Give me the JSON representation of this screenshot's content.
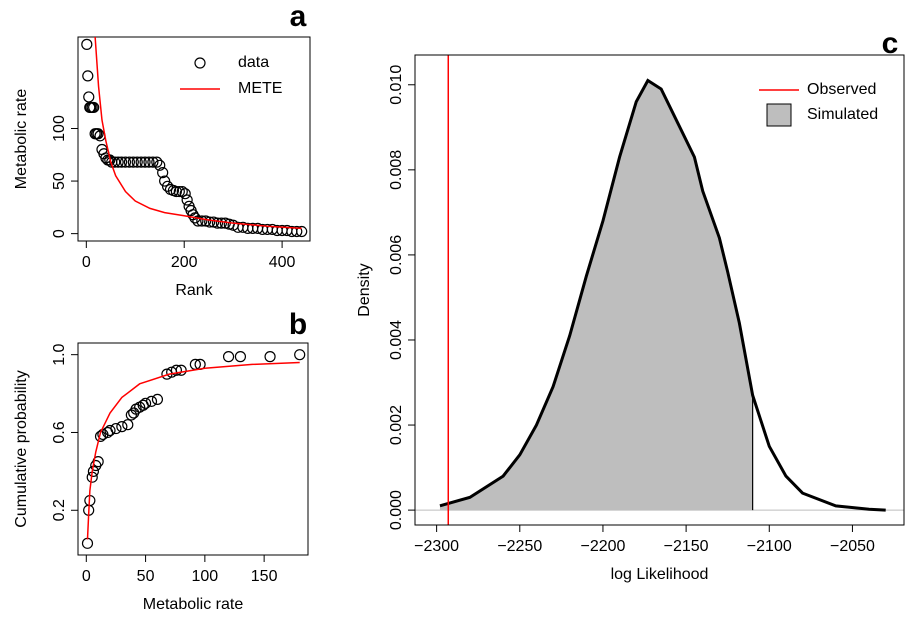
{
  "chart_data": [
    {
      "type": "scatter",
      "panel_label": "a",
      "x_label": "Rank",
      "y_label": "Metabolic rate",
      "xlim": [
        -17,
        457
      ],
      "ylim": [
        -7,
        187
      ],
      "xticks": [
        0,
        200,
        400
      ],
      "yticks": [
        0,
        50,
        100
      ],
      "legend": "topright",
      "series": [
        {
          "name": "data",
          "style": "points",
          "color": "#000000",
          "x": [
            1,
            3,
            5,
            7,
            9,
            12,
            15,
            18,
            21,
            24,
            28,
            32,
            36,
            40,
            44,
            48,
            52,
            58,
            65,
            72,
            80,
            88,
            96,
            104,
            112,
            120,
            128,
            136,
            144,
            150,
            156,
            160,
            166,
            172,
            178,
            184,
            190,
            196,
            202,
            206,
            210,
            214,
            218,
            222,
            228,
            236,
            244,
            252,
            260,
            268,
            276,
            284,
            292,
            300,
            310,
            320,
            330,
            340,
            350,
            360,
            370,
            380,
            390,
            400,
            410,
            420,
            430,
            440
          ],
          "values": [
            180,
            150,
            130,
            120,
            120,
            120,
            120,
            95,
            95,
            95,
            93,
            80,
            76,
            72,
            70,
            70,
            68,
            68,
            68,
            68,
            68,
            68,
            68,
            68,
            68,
            68,
            68,
            68,
            68,
            65,
            58,
            50,
            45,
            42,
            41,
            40,
            40,
            40,
            38,
            32,
            26,
            22,
            18,
            15,
            12,
            12,
            12,
            11,
            11,
            10,
            10,
            10,
            9,
            8,
            6,
            6,
            5,
            5,
            5,
            4,
            4,
            4,
            3,
            3,
            3,
            2,
            2,
            2
          ]
        },
        {
          "name": "METE",
          "style": "line",
          "color": "#ff0000",
          "x": [
            18,
            25,
            32,
            40,
            50,
            60,
            80,
            100,
            130,
            160,
            200,
            250,
            300,
            370,
            440
          ],
          "values": [
            187,
            140,
            108,
            88,
            68,
            55,
            40,
            31,
            24,
            20,
            17,
            13,
            10,
            7,
            5
          ]
        }
      ]
    },
    {
      "type": "scatter",
      "panel_label": "b",
      "x_label": "Metabolic rate",
      "y_label": "Cumulative probability",
      "xlim": [
        -7,
        187
      ],
      "ylim": [
        -0.03,
        1.06
      ],
      "xticks": [
        0,
        50,
        100,
        150
      ],
      "yticks": [
        0.2,
        0.6,
        {
          "value": 1.0,
          "label": "1.0"
        }
      ],
      "series": [
        {
          "name": "data",
          "style": "points",
          "color": "#000000",
          "x": [
            1,
            2,
            3,
            5,
            6,
            8,
            10,
            12,
            14,
            18,
            20,
            25,
            30,
            35,
            38,
            40,
            42,
            45,
            48,
            50,
            55,
            60,
            68,
            72,
            76,
            80,
            92,
            96,
            120,
            130,
            155,
            180
          ],
          "values": [
            0.03,
            0.2,
            0.25,
            0.37,
            0.4,
            0.43,
            0.45,
            0.58,
            0.59,
            0.6,
            0.61,
            0.62,
            0.63,
            0.64,
            0.69,
            0.7,
            0.72,
            0.73,
            0.74,
            0.75,
            0.76,
            0.77,
            0.9,
            0.91,
            0.92,
            0.92,
            0.95,
            0.95,
            0.99,
            0.99,
            0.99,
            1.0
          ]
        },
        {
          "name": "METE",
          "style": "line",
          "color": "#ff0000",
          "x": [
            1,
            2,
            3,
            5,
            8,
            12,
            20,
            30,
            45,
            70,
            100,
            140,
            180
          ],
          "values": [
            0.05,
            0.18,
            0.3,
            0.4,
            0.5,
            0.6,
            0.7,
            0.78,
            0.85,
            0.9,
            0.93,
            0.95,
            0.96
          ]
        }
      ]
    },
    {
      "type": "density",
      "panel_label": "c",
      "x_label": "log Likelihood",
      "y_label": "Density",
      "xlim": [
        -2313,
        -2019
      ],
      "ylim": [
        -0.00035,
        0.0107
      ],
      "legend": "topright",
      "xticks": [
        {
          "value": -2300,
          "label": "−2300"
        },
        {
          "value": -2250,
          "label": "−2250"
        },
        {
          "value": -2200,
          "label": "−2200"
        },
        {
          "value": -2150,
          "label": "−2150"
        },
        {
          "value": -2100,
          "label": "−2100"
        },
        {
          "value": -2050,
          "label": "−2050"
        }
      ],
      "yticks": [
        {
          "value": 0,
          "label": "0.000"
        },
        0.002,
        0.004,
        0.006,
        0.008,
        {
          "value": 0.01,
          "label": "0.010"
        }
      ],
      "shade_until": -2110,
      "observed": {
        "name": "Observed",
        "value": -2293,
        "color": "#ff0000"
      },
      "series": [
        {
          "name": "Simulated",
          "color": "#bebebe",
          "x": [
            -2298,
            -2280,
            -2260,
            -2250,
            -2240,
            -2230,
            -2220,
            -2210,
            -2200,
            -2190,
            -2180,
            -2173,
            -2165,
            -2155,
            -2145,
            -2140,
            -2130,
            -2125,
            -2118,
            -2110,
            -2100,
            -2090,
            -2080,
            -2060,
            -2040,
            -2030
          ],
          "values": [
            0.0001,
            0.0003,
            0.0008,
            0.0013,
            0.002,
            0.0029,
            0.0041,
            0.0055,
            0.0068,
            0.0083,
            0.0096,
            0.0101,
            0.0099,
            0.0091,
            0.0083,
            0.0075,
            0.0064,
            0.0056,
            0.0044,
            0.0027,
            0.0015,
            0.0008,
            0.0004,
            0.0001,
            2e-05,
            0
          ]
        }
      ]
    }
  ]
}
